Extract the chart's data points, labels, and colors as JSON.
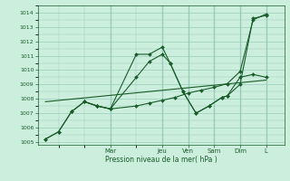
{
  "background_color": "#cceedd",
  "grid_color": "#99ccbb",
  "line_color": "#1a5c2a",
  "xlabel": "Pression niveau de la mer( hPa )",
  "ylim": [
    1004.8,
    1014.5
  ],
  "yticks": [
    1005,
    1006,
    1007,
    1008,
    1009,
    1010,
    1011,
    1012,
    1013,
    1014
  ],
  "day_labels": [
    "Mar",
    "Jeu",
    "Ven",
    "Sam",
    "Dim",
    "L"
  ],
  "day_positions": [
    2.5,
    4.5,
    5.5,
    6.5,
    7.5,
    8.5
  ],
  "xlim": [
    -0.3,
    9.2
  ],
  "series1_x": [
    0.0,
    0.5,
    1.0,
    1.5,
    2.0,
    2.5,
    3.5,
    4.0,
    4.5,
    5.0,
    5.5,
    6.0,
    6.5,
    7.0,
    7.5,
    8.0,
    8.5
  ],
  "series1_y": [
    1005.2,
    1005.7,
    1007.1,
    1007.8,
    1007.5,
    1007.3,
    1007.5,
    1007.7,
    1007.9,
    1008.1,
    1008.4,
    1008.6,
    1008.8,
    1009.05,
    1009.9,
    1013.5,
    1013.9
  ],
  "series2_x": [
    0.0,
    0.5,
    1.0,
    1.5,
    2.0,
    2.5,
    3.5,
    4.0,
    4.5,
    4.8,
    5.3,
    5.8,
    6.3,
    6.8,
    7.0,
    7.5,
    8.0,
    8.5
  ],
  "series2_y": [
    1005.2,
    1005.7,
    1007.1,
    1007.8,
    1007.5,
    1007.3,
    1011.1,
    1011.1,
    1011.6,
    1010.5,
    1008.5,
    1007.0,
    1007.5,
    1008.1,
    1008.2,
    1009.0,
    1013.6,
    1013.8
  ],
  "series3_x": [
    1.5,
    2.0,
    2.5,
    3.5,
    4.0,
    4.5,
    4.8,
    5.3,
    5.8,
    6.3,
    6.8,
    7.0,
    7.5,
    8.0,
    8.5
  ],
  "series3_y": [
    1007.8,
    1007.5,
    1007.3,
    1009.5,
    1010.6,
    1011.1,
    1010.5,
    1008.5,
    1007.0,
    1007.5,
    1008.1,
    1008.2,
    1009.5,
    1009.7,
    1009.5
  ],
  "series4_x": [
    0.0,
    8.5
  ],
  "series4_y": [
    1007.8,
    1009.3
  ]
}
